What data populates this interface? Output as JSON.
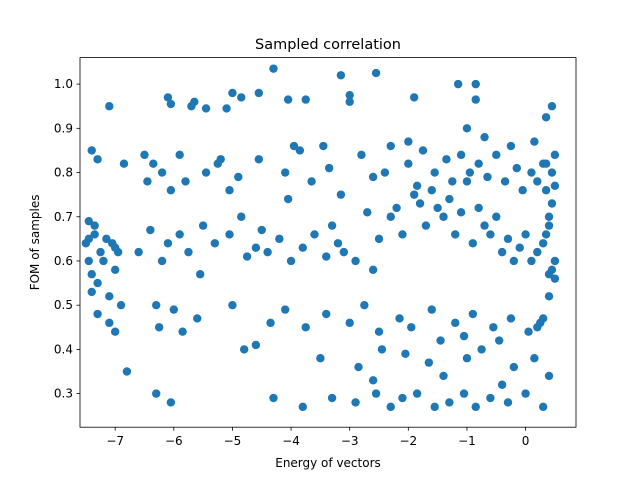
{
  "chart_data": {
    "type": "scatter",
    "title": "Sampled correlation",
    "xlabel": "Energy of vectors",
    "ylabel": "FOM of samples",
    "xlim": [
      -7.6,
      0.86
    ],
    "ylim": [
      0.224,
      1.06
    ],
    "xticks": [
      -7,
      -6,
      -5,
      -4,
      -3,
      -2,
      -1,
      0
    ],
    "xtick_labels": [
      "−7",
      "−6",
      "−5",
      "−4",
      "−3",
      "−2",
      "−1",
      "0"
    ],
    "yticks": [
      0.3,
      0.4,
      0.5,
      0.6,
      0.7,
      0.8,
      0.9,
      1.0
    ],
    "ytick_labels": [
      "0.3",
      "0.4",
      "0.5",
      "0.6",
      "0.7",
      "0.8",
      "0.9",
      "1.0"
    ],
    "grid": false,
    "marker_color": "#1f77b4",
    "series": [
      {
        "x": [
          -4.3,
          -2.55,
          -3.15,
          -1.15,
          -0.85,
          -5.0,
          -4.85,
          -4.55,
          -6.1,
          -6.05,
          -5.65,
          -3.75,
          -3.0,
          -7.1,
          -5.7,
          -5.45,
          -5.1,
          -4.05,
          -3.0,
          -1.9,
          -0.85,
          0.45,
          0.35,
          -7.4,
          -7.3,
          -6.85,
          -6.5,
          -5.2,
          -3.85,
          -3.45,
          -2.0,
          -1.0,
          -0.7,
          -0.25,
          0.15,
          0.5,
          -7.45,
          -7.35,
          -7.5,
          -7.45,
          -7.3,
          -7.1,
          -6.9,
          -6.95,
          -7.4,
          -7.3,
          -7.1,
          -7.0,
          -6.8,
          -7.35,
          -7.15,
          -7.0,
          -7.45,
          -7.2,
          -7.0,
          -7.4,
          -7.25,
          -7.05,
          -6.6,
          -6.4,
          -6.1,
          -6.2,
          -5.9,
          -5.75,
          -5.5,
          -5.55,
          -5.3,
          -5.05,
          -4.75,
          -4.85,
          -4.6,
          -4.4,
          -4.5,
          -4.2,
          -4.0,
          -3.8,
          -3.6,
          -3.4,
          -3.2,
          -3.3,
          -3.1,
          -2.9,
          -2.7,
          -2.5,
          -2.6,
          -2.3,
          -2.2,
          -2.1,
          -1.9,
          -1.8,
          -1.7,
          -1.6,
          -1.5,
          -1.4,
          -1.3,
          -1.2,
          -1.1,
          -1.0,
          -0.9,
          -0.8,
          -0.7,
          -0.6,
          -0.5,
          -0.4,
          -0.3,
          -0.2,
          -0.1,
          0.0,
          0.1,
          0.2,
          0.3,
          0.4,
          0.45,
          0.5,
          0.4,
          0.35,
          0.45,
          0.4,
          0.5,
          0.3,
          0.45,
          0.35,
          0.5,
          0.4,
          0.3,
          0.2,
          -6.45,
          -6.35,
          -6.2,
          -6.05,
          -5.9,
          -5.8,
          -5.45,
          -5.25,
          -5.05,
          -4.9,
          -4.55,
          -4.1,
          -4.05,
          -3.95,
          -3.65,
          -3.35,
          -3.15,
          -2.8,
          -2.6,
          -2.4,
          -2.3,
          -2.0,
          -1.85,
          -1.75,
          -1.55,
          -1.35,
          -1.25,
          -1.1,
          -0.95,
          -0.8,
          -0.65,
          -0.5,
          -0.35,
          -0.15,
          -0.05,
          0.1,
          0.2,
          0.35,
          -6.3,
          -6.25,
          -6.0,
          -5.85,
          -5.6,
          -5.0,
          -4.35,
          -4.1,
          -3.75,
          -3.4,
          -3.0,
          -2.75,
          -2.5,
          -2.15,
          -1.95,
          -1.6,
          -1.2,
          -1.05,
          -0.9,
          -0.55,
          -0.45,
          -0.25,
          0.05,
          0.25,
          -4.8,
          -4.6,
          -3.5,
          -2.85,
          -2.45,
          -2.05,
          -1.65,
          -1.45,
          -1.0,
          -0.75,
          -0.2,
          0.15,
          -6.3,
          -6.05,
          -4.3,
          -3.8,
          -3.3,
          -2.9,
          -2.55,
          -2.3,
          -2.1,
          -1.85,
          -1.55,
          -1.3,
          -1.05,
          -0.85,
          -0.6,
          -0.3,
          0.0,
          0.3,
          -2.6,
          -1.4,
          -0.4,
          0.4
        ],
        "y": [
          1.035,
          1.025,
          1.02,
          1.0,
          1.0,
          0.98,
          0.97,
          0.98,
          0.97,
          0.955,
          0.96,
          0.965,
          0.975,
          0.95,
          0.95,
          0.945,
          0.945,
          0.965,
          0.96,
          0.97,
          0.965,
          0.95,
          0.925,
          0.85,
          0.83,
          0.82,
          0.84,
          0.83,
          0.85,
          0.86,
          0.87,
          0.9,
          0.88,
          0.86,
          0.87,
          0.84,
          0.69,
          0.68,
          0.64,
          0.6,
          0.55,
          0.52,
          0.5,
          0.62,
          0.53,
          0.48,
          0.46,
          0.44,
          0.35,
          0.66,
          0.65,
          0.63,
          0.65,
          0.6,
          0.58,
          0.57,
          0.62,
          0.64,
          0.62,
          0.67,
          0.64,
          0.6,
          0.66,
          0.62,
          0.68,
          0.57,
          0.64,
          0.66,
          0.61,
          0.7,
          0.63,
          0.62,
          0.67,
          0.65,
          0.6,
          0.63,
          0.66,
          0.61,
          0.64,
          0.68,
          0.62,
          0.6,
          0.71,
          0.65,
          0.58,
          0.7,
          0.72,
          0.66,
          0.75,
          0.73,
          0.68,
          0.76,
          0.72,
          0.7,
          0.74,
          0.66,
          0.71,
          0.78,
          0.64,
          0.72,
          0.68,
          0.66,
          0.7,
          0.62,
          0.65,
          0.6,
          0.63,
          0.66,
          0.6,
          0.62,
          0.64,
          0.57,
          0.58,
          0.6,
          0.7,
          0.76,
          0.73,
          0.68,
          0.77,
          0.82,
          0.8,
          0.66,
          0.56,
          0.52,
          0.47,
          0.45,
          0.78,
          0.82,
          0.8,
          0.76,
          0.84,
          0.78,
          0.8,
          0.82,
          0.76,
          0.79,
          0.83,
          0.8,
          0.74,
          0.86,
          0.78,
          0.81,
          0.75,
          0.84,
          0.79,
          0.8,
          0.86,
          0.82,
          0.77,
          0.85,
          0.8,
          0.83,
          0.78,
          0.84,
          0.8,
          0.82,
          0.79,
          0.84,
          0.78,
          0.81,
          0.76,
          0.8,
          0.78,
          0.82,
          0.5,
          0.45,
          0.49,
          0.44,
          0.47,
          0.5,
          0.46,
          0.49,
          0.45,
          0.48,
          0.46,
          0.5,
          0.44,
          0.47,
          0.45,
          0.49,
          0.46,
          0.43,
          0.48,
          0.45,
          0.42,
          0.47,
          0.44,
          0.46,
          0.4,
          0.41,
          0.38,
          0.36,
          0.4,
          0.39,
          0.37,
          0.42,
          0.38,
          0.4,
          0.36,
          0.38,
          0.3,
          0.28,
          0.29,
          0.27,
          0.29,
          0.28,
          0.3,
          0.27,
          0.29,
          0.3,
          0.27,
          0.28,
          0.3,
          0.27,
          0.29,
          0.28,
          0.3,
          0.27,
          0.33,
          0.34,
          0.32,
          0.34
        ]
      }
    ]
  }
}
